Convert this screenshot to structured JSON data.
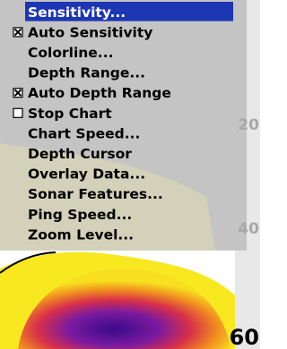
{
  "menu": {
    "items": [
      {
        "label": "Sensitivity...",
        "selected": true
      },
      {
        "label": "Auto Sensitivity",
        "checked": true
      },
      {
        "label": "Colorline..."
      },
      {
        "label": "Depth Range..."
      },
      {
        "label": "Auto Depth Range",
        "checked": true
      },
      {
        "label": "Stop Chart",
        "checked": false
      },
      {
        "label": "Chart Speed..."
      },
      {
        "label": "Depth Cursor"
      },
      {
        "label": "Overlay Data..."
      },
      {
        "label": "Sonar Features..."
      },
      {
        "label": "Ping Speed..."
      },
      {
        "label": "Zoom Level..."
      }
    ]
  },
  "depth_scale": {
    "labels": [
      "20",
      "40",
      "60"
    ]
  }
}
